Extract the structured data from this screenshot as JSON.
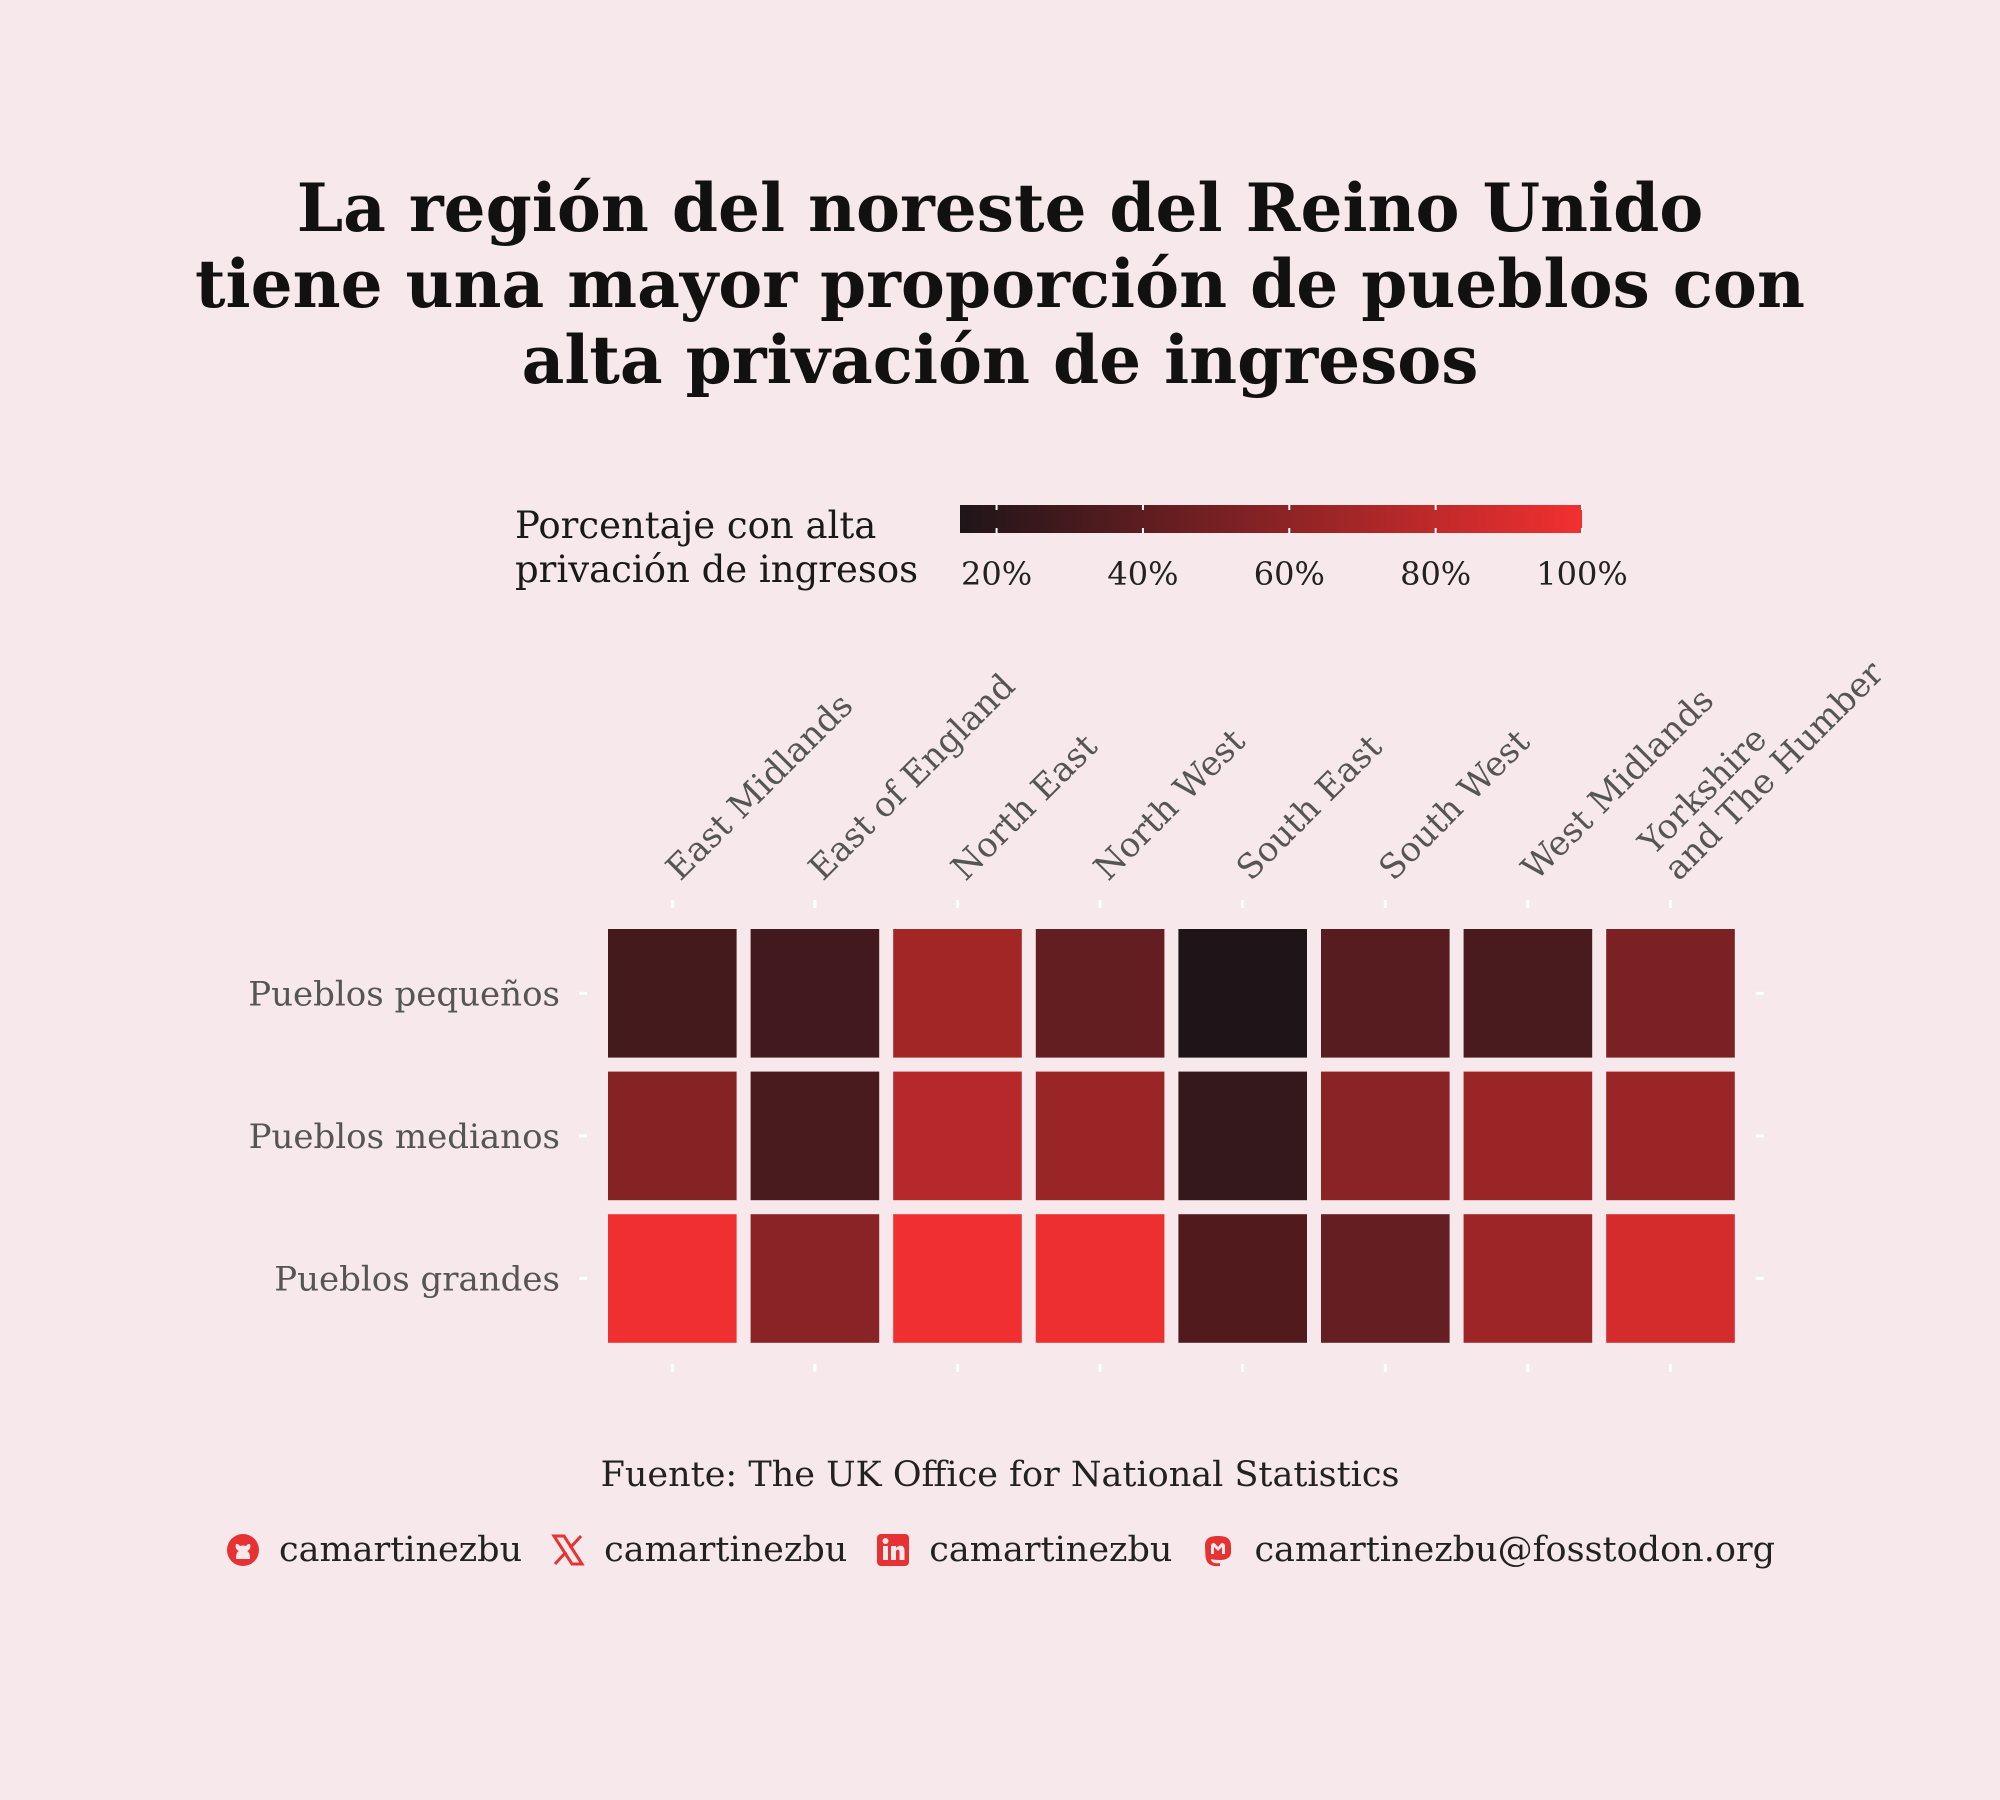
{
  "title_lines": [
    "La región del noreste del Reino Unido",
    "tiene una mayor proporción de pueblos con",
    "alta privación de ingresos"
  ],
  "legend": {
    "title_lines": [
      "Porcentaje con alta",
      "privación de ingresos"
    ],
    "ticks": [
      "20%",
      "40%",
      "60%",
      "80%",
      "100%"
    ],
    "tick_values": [
      20,
      40,
      60,
      80,
      100
    ],
    "range": [
      15,
      100
    ],
    "colors": [
      "#1f1519",
      "#f23030"
    ]
  },
  "caption": "Fuente: The UK Office for National Statistics",
  "social": [
    {
      "icon": "github-icon",
      "handle": "camartinezbu"
    },
    {
      "icon": "x-icon",
      "handle": "camartinezbu"
    },
    {
      "icon": "linkedin-icon",
      "handle": "camartinezbu"
    },
    {
      "icon": "mastodon-icon",
      "handle": "camartinezbu@fosstodon.org"
    }
  ],
  "accent_color": "#e63232",
  "chart_data": {
    "type": "heatmap",
    "x_categories": [
      "East Midlands",
      "East of England",
      "North East",
      "North West",
      "South East",
      "South West",
      "West Midlands",
      "Yorkshire and The Humber"
    ],
    "y_categories": [
      "Pueblos pequeños",
      "Pueblos medianos",
      "Pueblos grandes"
    ],
    "values": [
      [
        30,
        29,
        68,
        42,
        15,
        37,
        32,
        52
      ],
      [
        56,
        32,
        76,
        64,
        24,
        58,
        64,
        64
      ],
      [
        99,
        58,
        99,
        98,
        35,
        43,
        66,
        88
      ]
    ],
    "value_unit": "%",
    "legend_placement": "top",
    "grid": false
  }
}
